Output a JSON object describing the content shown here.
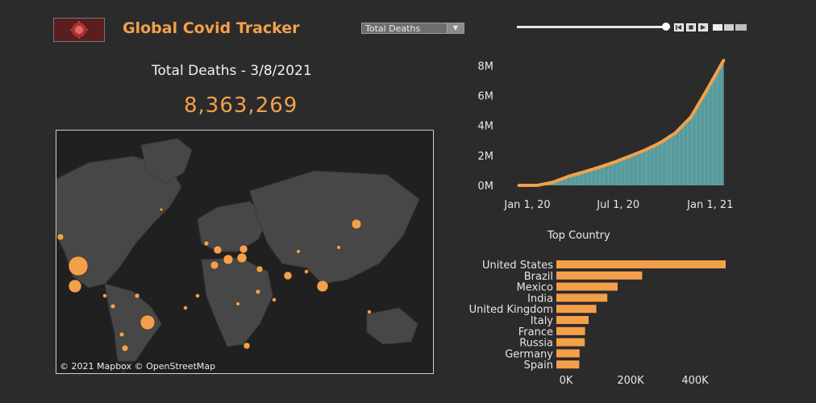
{
  "header": {
    "app_title": "Global Covid Tracker",
    "metric_dropdown": "Total Deaths",
    "accent_color": "#f4a04a"
  },
  "kpi": {
    "title": "Total Deaths - 3/8/2021",
    "value": "8,363,269"
  },
  "map": {
    "credit": "© 2021 Mapbox © OpenStreetMap"
  },
  "chart_data": [
    {
      "type": "area",
      "title": "",
      "x_ticks": [
        "Jan 1, 20",
        "Jul 1, 20",
        "Jan 1, 21"
      ],
      "y_ticks": [
        "0M",
        "2M",
        "4M",
        "6M",
        "8M"
      ],
      "ylim": [
        0,
        8500000
      ],
      "x": [
        "2020-01-22",
        "2020-03-01",
        "2020-04-01",
        "2020-05-01",
        "2020-06-01",
        "2020-07-01",
        "2020-08-01",
        "2020-09-01",
        "2020-10-01",
        "2020-11-01",
        "2020-12-01",
        "2021-01-01",
        "2021-02-01",
        "2021-03-08"
      ],
      "values": [
        0,
        10000,
        220000,
        600000,
        900000,
        1200000,
        1550000,
        1950000,
        2350000,
        2850000,
        3500000,
        4550000,
        6300000,
        8363269
      ],
      "line_color": "#f4a04a",
      "fill_color": "#5fa8a8"
    },
    {
      "type": "bar",
      "title": "Top Country",
      "categories": [
        "United States",
        "Brazil",
        "Mexico",
        "India",
        "United Kingdom",
        "Italy",
        "France",
        "Russia",
        "Germany",
        "Spain"
      ],
      "values": [
        525000,
        266000,
        190000,
        158000,
        124000,
        100000,
        89000,
        88000,
        72000,
        71000
      ],
      "x_ticks": [
        "0K",
        "200K",
        "400K"
      ],
      "xlim": [
        0,
        550000
      ],
      "bar_color": "#f4a04a"
    }
  ]
}
